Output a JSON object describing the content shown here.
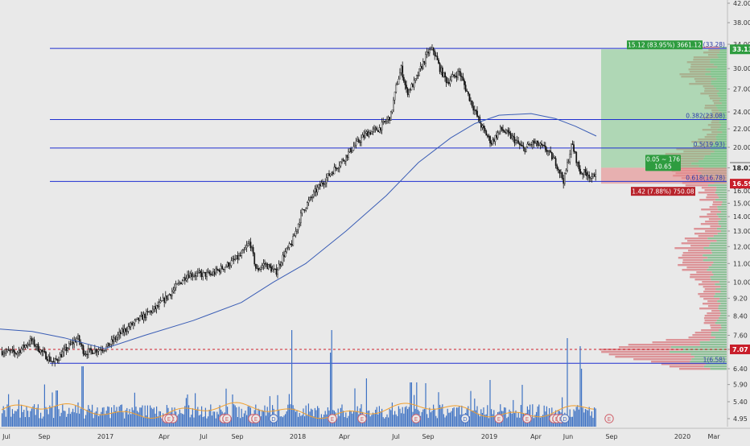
{
  "chart_data": {
    "type": "candlestick",
    "y_axis": {
      "scale": "log",
      "range": [
        4.72,
        42.0
      ],
      "tick_labels": [
        "42.00",
        "38.00",
        "34.00",
        "30.00",
        "27.00",
        "24.00",
        "22.00",
        "20.00",
        "18.00",
        "16.00",
        "15.00",
        "14.00",
        "13.00",
        "12.00",
        "11.00",
        "10.00",
        "9.20",
        "8.40",
        "7.60",
        "7.07",
        "6.40",
        "5.90",
        "5.40",
        "4.95"
      ]
    },
    "x_axis": {
      "tick_labels": [
        "Jul",
        "Sep",
        "2017",
        "Apr",
        "Jul",
        "Sep",
        "2018",
        "Apr",
        "Jul",
        "Sep",
        "2019",
        "Apr",
        "Jun",
        "Sep",
        "2020",
        "Mar"
      ]
    },
    "fib_levels": [
      {
        "label": "0(33.28)",
        "price": 33.28
      },
      {
        "label": "0.382(23.08)",
        "price": 23.08
      },
      {
        "label": "0.5(19.93)",
        "price": 19.93
      },
      {
        "label": "0.618(16.78)",
        "price": 16.78
      },
      {
        "label": "1(6.58)",
        "price": 6.58
      }
    ],
    "price_badges": [
      {
        "label": "33.13",
        "price": 33.13,
        "color": "#2e9c3f"
      },
      {
        "label": "18.06",
        "price": 18.06,
        "color": "#222222"
      },
      {
        "label": "18.01",
        "price": 18.01,
        "color": "#e9e9e9"
      },
      {
        "label": "16.59",
        "price": 16.59,
        "color": "#c81e2a"
      },
      {
        "label": "7.07",
        "price": 7.07,
        "color": "#c81e2a"
      }
    ],
    "position_tool": {
      "target_label": "15.12 (83.95%) 3661.12",
      "stop_label": "1.42 (7.88%) 750.08",
      "center_line1": "0.05 ~ 176",
      "center_line2": "10.65",
      "entry": 18.01,
      "target": 33.13,
      "stop": 16.59
    },
    "dashed_line_price": 7.07,
    "event_markers": [
      "E",
      "E",
      "E",
      "E",
      "D",
      "E",
      "E",
      "E",
      "D",
      "E",
      "E",
      "E",
      "E",
      "E",
      "D",
      "E",
      "E",
      "E",
      "E"
    ],
    "colors": {
      "background": "#e9e9e9",
      "candles": "#111111",
      "moving_average": "#3a5db5",
      "fib_line": "#1f2fd0",
      "volume": "#3e72c4",
      "volume_ma": "#f0a030",
      "profit_zone": "#7fc98a",
      "loss_zone": "#e68a8a"
    }
  }
}
